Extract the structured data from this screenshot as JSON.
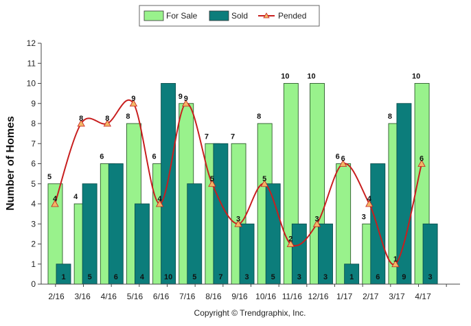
{
  "chart_data": {
    "type": "bar",
    "categories": [
      "2/16",
      "3/16",
      "4/16",
      "5/16",
      "6/16",
      "7/16",
      "8/16",
      "9/16",
      "10/16",
      "11/16",
      "12/16",
      "1/17",
      "2/17",
      "3/17",
      "4/17"
    ],
    "series": [
      {
        "name": "For Sale",
        "type": "bar",
        "color": "#99f28c",
        "values": [
          5,
          4,
          6,
          8,
          6,
          9,
          7,
          7,
          8,
          10,
          10,
          6,
          3,
          8,
          10
        ]
      },
      {
        "name": "Sold",
        "type": "bar",
        "color": "#0c7d7b",
        "values": [
          1,
          5,
          6,
          4,
          10,
          5,
          7,
          3,
          5,
          3,
          3,
          1,
          6,
          9,
          3
        ]
      },
      {
        "name": "Pended",
        "type": "line",
        "color": "#c81e1e",
        "marker_color": "#f2b766",
        "values": [
          4,
          8,
          8,
          9,
          4,
          9,
          5,
          3,
          5,
          2,
          3,
          6,
          4,
          1,
          6
        ]
      }
    ],
    "ylabel": "Number of Homes",
    "xlabel": "",
    "ylim": [
      0,
      12
    ],
    "yticks": [
      0,
      1,
      2,
      3,
      4,
      5,
      6,
      7,
      8,
      9,
      10,
      11,
      12
    ],
    "grid": false,
    "legend_position": "top-center",
    "footer": "Copyright © Trendgraphix, Inc."
  }
}
